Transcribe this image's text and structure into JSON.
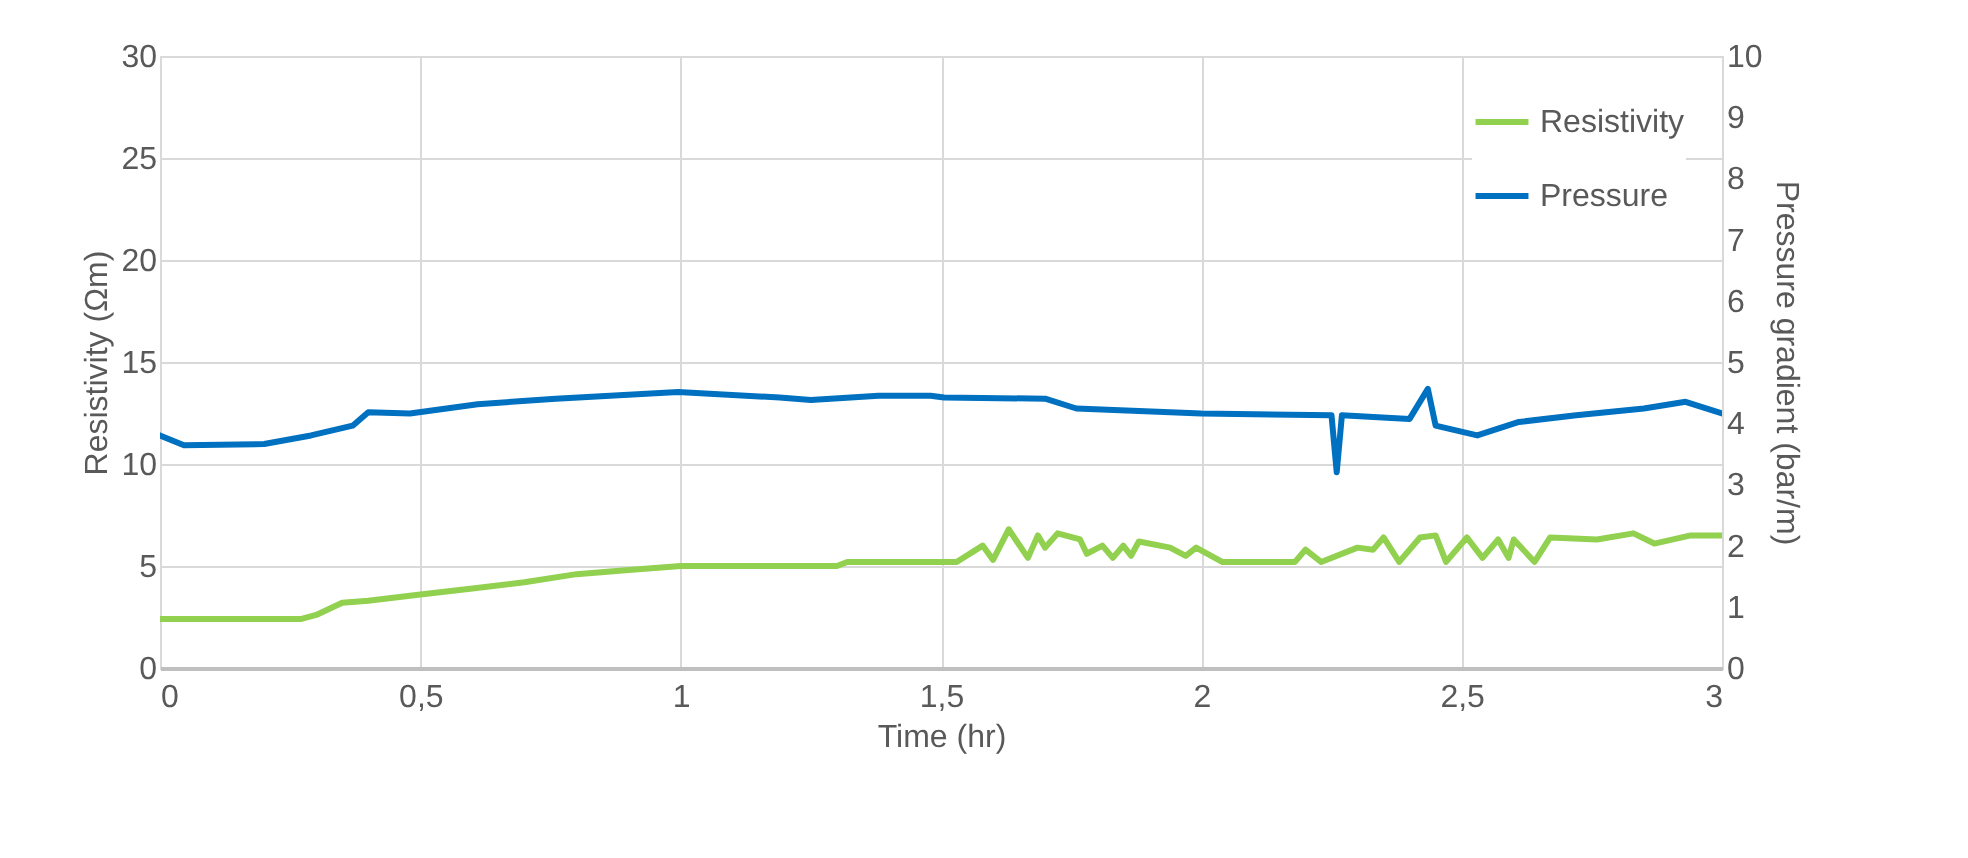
{
  "chart_data": {
    "type": "line",
    "xlabel": "Time (hr)",
    "ylabel": "Resistivity (Ωm)",
    "y2label": "Pressure gradient (bar/m)",
    "xlim": [
      0,
      3
    ],
    "xticks": [
      0,
      {
        "value": 0.5,
        "label": "0,5"
      },
      1,
      {
        "value": 1.5,
        "label": "1,5"
      },
      2,
      {
        "value": 2.5,
        "label": "2,5"
      },
      3
    ],
    "ylim": [
      0,
      30
    ],
    "yticks": [
      0,
      5,
      10,
      15,
      20,
      25,
      30
    ],
    "y2lim": [
      0,
      10
    ],
    "y2ticks": [
      0,
      1,
      2,
      3,
      4,
      5,
      6,
      7,
      8,
      9,
      10
    ],
    "grid": true,
    "legend": "top right",
    "line_style": "solid",
    "series": [
      {
        "name": "Resistivity",
        "color": "#92d050",
        "x": [
          0,
          0.27,
          0.3,
          0.35,
          0.4,
          0.5,
          0.6,
          0.7,
          0.8,
          0.9,
          1.0,
          1.3,
          1.32,
          1.53,
          1.58,
          1.6,
          1.63,
          1.667,
          1.686,
          1.7,
          1.724,
          1.767,
          1.78,
          1.81,
          1.83,
          1.85,
          1.865,
          1.88,
          1.94,
          1.97,
          1.99,
          2.04,
          2.18,
          2.2,
          2.23,
          2.3,
          2.33,
          2.35,
          2.38,
          2.42,
          2.45,
          2.47,
          2.51,
          2.54,
          2.57,
          2.59,
          2.6,
          2.64,
          2.67,
          2.76,
          2.83,
          2.87,
          2.94,
          3.0
        ],
        "values": [
          2.4,
          2.4,
          2.6,
          3.2,
          3.3,
          3.6,
          3.9,
          4.2,
          4.6,
          4.8,
          5.0,
          5.0,
          5.2,
          5.2,
          6.0,
          5.3,
          6.8,
          5.4,
          6.5,
          5.9,
          6.6,
          6.3,
          5.6,
          6.0,
          5.4,
          6.0,
          5.5,
          6.2,
          5.9,
          5.5,
          5.9,
          5.2,
          5.2,
          5.8,
          5.2,
          5.9,
          5.8,
          6.4,
          5.2,
          6.4,
          6.5,
          5.2,
          6.4,
          5.4,
          6.3,
          5.4,
          6.3,
          5.2,
          6.4,
          6.3,
          6.6,
          6.1,
          6.5,
          6.5
        ]
      },
      {
        "name": "Pressure",
        "color": "#0070c0",
        "axis": "y2",
        "x": [
          0,
          0.046,
          0.2,
          0.29,
          0.37,
          0.4,
          0.48,
          0.61,
          0.76,
          0.995,
          1.19,
          1.25,
          1.38,
          1.48,
          1.506,
          1.7,
          1.76,
          2.0,
          2.25,
          2.26,
          2.27,
          2.4,
          2.435,
          2.45,
          2.53,
          2.61,
          2.72,
          2.85,
          2.93,
          3.0
        ],
        "values": [
          3.8,
          3.64,
          3.66,
          3.8,
          3.96,
          4.18,
          4.16,
          4.31,
          4.4,
          4.51,
          4.42,
          4.38,
          4.45,
          4.45,
          4.42,
          4.4,
          4.24,
          4.16,
          4.13,
          3.2,
          4.13,
          4.07,
          4.56,
          3.96,
          3.8,
          4.02,
          4.13,
          4.24,
          4.35,
          4.16
        ]
      }
    ]
  }
}
